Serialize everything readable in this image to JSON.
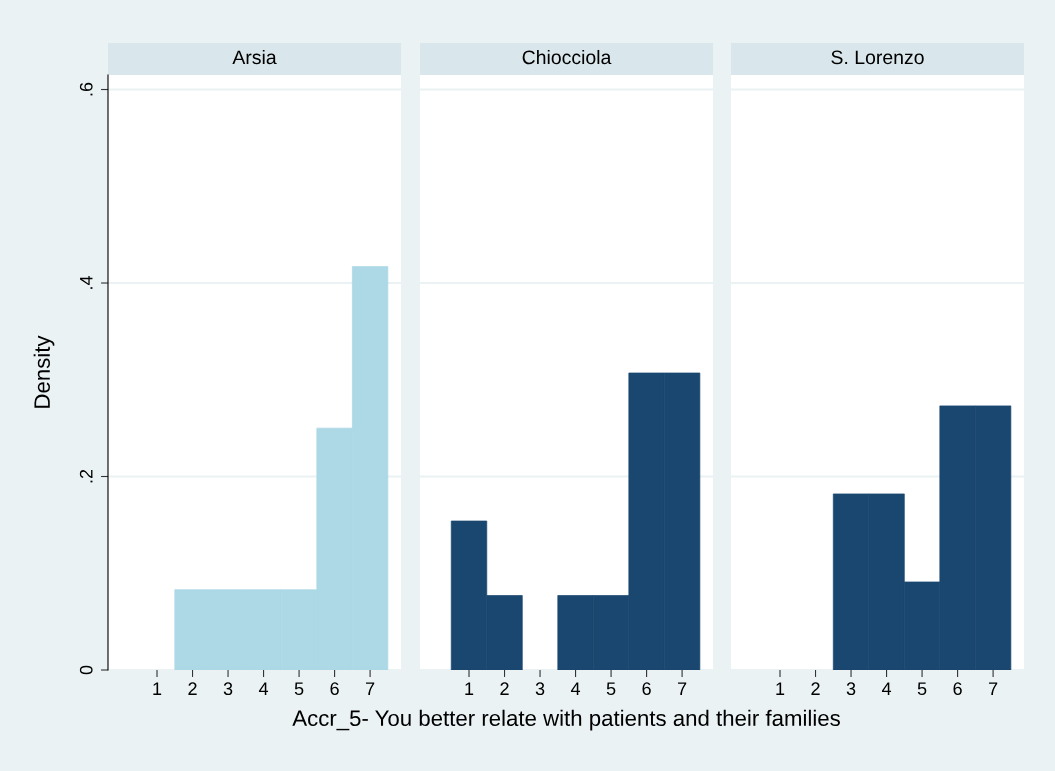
{
  "chart_data": [
    {
      "type": "histogram",
      "title": "Arsia",
      "ylabel": "Density",
      "bins": [
        1.5,
        2.5,
        3.5,
        4.5,
        5.5,
        6.5,
        7.5
      ],
      "values": [
        0.083,
        0.083,
        0.083,
        0.083,
        0.25,
        0.417
      ],
      "color": "#add8e6",
      "xlim": [
        -0.38,
        7.87
      ],
      "xticks": [
        1,
        2,
        3,
        4,
        5,
        6,
        7
      ],
      "ylim": [
        0,
        0.615
      ],
      "yticks": [
        {
          "value": 0,
          "label": "0"
        },
        {
          "value": 0.2,
          "label": ".2"
        },
        {
          "value": 0.4,
          "label": ".4"
        },
        {
          "value": 0.6,
          "label": ".6"
        }
      ],
      "grid": "y"
    },
    {
      "type": "histogram",
      "title": "Chiocciola",
      "xlabel": "Accr_5- You better relate with patients and their families",
      "bins": [
        0.5,
        1.5,
        2.5,
        3.5,
        4.5,
        5.5,
        6.5,
        7.5
      ],
      "values": [
        0.154,
        0.077,
        0,
        0.077,
        0.077,
        0.307,
        0.307
      ],
      "color": "#1a476f",
      "xlim": [
        -0.38,
        7.87
      ],
      "xticks": [
        1,
        2,
        3,
        4,
        5,
        6,
        7
      ],
      "ylim": [
        0,
        0.615
      ],
      "yticks": [
        0,
        0.2,
        0.4,
        0.6
      ],
      "grid": "y",
      "tick_labels": "x"
    },
    {
      "type": "histogram",
      "title": "S. Lorenzo",
      "bins": [
        2.5,
        3.5,
        4.5,
        5.5,
        6.5,
        7.5
      ],
      "values": [
        0.182,
        0.182,
        0.091,
        0.273,
        0.273
      ],
      "color": "#1a476f",
      "xlim": [
        -0.38,
        7.87
      ],
      "xticks": [
        1,
        2,
        3,
        4,
        5,
        6,
        7
      ],
      "ylim": [
        0,
        0.615
      ],
      "yticks": [
        0,
        0.2,
        0.4,
        0.6
      ],
      "grid": "y",
      "tick_labels": "x"
    }
  ]
}
